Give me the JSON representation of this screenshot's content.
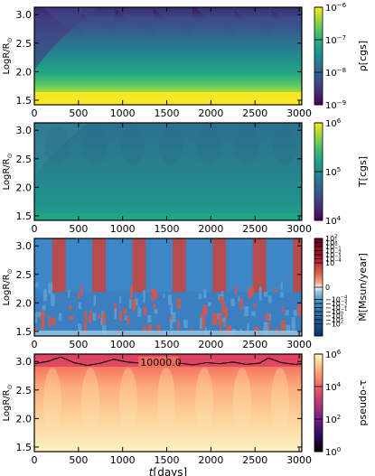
{
  "chart_data": [
    {
      "type": "heatmap",
      "panel": "density",
      "ylabel": "Log$R/R_\\odot$",
      "ylabel_text": "LogR/R",
      "ylabel_sub": "⊙",
      "x_ticks": [
        0,
        500,
        1000,
        1500,
        2000,
        2500,
        3000
      ],
      "y_ticks": [
        "1.5",
        "2.0",
        "2.5",
        "3.0"
      ],
      "xlim": [
        0,
        3030
      ],
      "ylim": [
        1.42,
        3.13
      ],
      "colormap": "viridis",
      "cbar_scale": "log",
      "cbar_label": "ρ[cgs]",
      "cbar_ticks": [
        {
          "mant": "10",
          "exp": "−6",
          "pos": 1.0
        },
        {
          "mant": "10",
          "exp": "−7",
          "pos": 0.667
        },
        {
          "mant": "10",
          "exp": "−8",
          "pos": 0.333
        },
        {
          "mant": "10",
          "exp": "−9",
          "pos": 0.0
        }
      ],
      "pulsation_times_days": [
        150,
        520,
        960,
        1400,
        1880,
        2300,
        2720
      ]
    },
    {
      "type": "heatmap",
      "panel": "temperature",
      "ylabel_text": "LogR/R",
      "ylabel_sub": "⊙",
      "x_ticks": [
        0,
        500,
        1000,
        1500,
        2000,
        2500,
        3000
      ],
      "y_ticks": [
        "1.5",
        "2.0",
        "2.5",
        "3.0"
      ],
      "xlim": [
        0,
        3030
      ],
      "ylim": [
        1.42,
        3.13
      ],
      "colormap": "viridis",
      "cbar_scale": "log",
      "cbar_label": "T[cgs]",
      "cbar_ticks": [
        {
          "mant": "10",
          "exp": "6",
          "pos": 1.0
        },
        {
          "mant": "10",
          "exp": "5",
          "pos": 0.5
        },
        {
          "mant": "10",
          "exp": "4",
          "pos": 0.0
        }
      ]
    },
    {
      "type": "heatmap",
      "panel": "mass-flux",
      "ylabel_text": "LogR/R",
      "ylabel_sub": "⊙",
      "x_ticks": [
        0,
        500,
        1000,
        1500,
        2000,
        2500,
        3000
      ],
      "y_ticks": [
        "1.5",
        "2.0",
        "2.5",
        "3.0"
      ],
      "xlim": [
        0,
        3030
      ],
      "ylim": [
        1.42,
        3.13
      ],
      "colormap": "RdBu (symlog)",
      "cbar_scale": "symlog",
      "cbar_label": "Ṁ[Msun/year]",
      "cbar_ticks": [
        {
          "mant": "10",
          "exp": "2",
          "pos": 1.0
        },
        {
          "mant": "10",
          "exp": "1",
          "pos": 0.9583
        },
        {
          "mant": "10",
          "exp": "0",
          "pos": 0.9167
        },
        {
          "mant": "10",
          "exp": "−1",
          "pos": 0.875
        },
        {
          "mant": "10",
          "exp": "−2",
          "pos": 0.8333
        },
        {
          "mant": "10",
          "exp": "−3",
          "pos": 0.7917
        },
        {
          "mant": "10",
          "exp": "−4",
          "pos": 0.75
        },
        {
          "mant": "0",
          "exp": "",
          "pos": 0.5
        },
        {
          "mant": "−10",
          "exp": "−4",
          "pos": 0.375
        },
        {
          "mant": "−10",
          "exp": "−3",
          "pos": 0.3333
        },
        {
          "mant": "−10",
          "exp": "−2",
          "pos": 0.2917
        },
        {
          "mant": "−10",
          "exp": "−1",
          "pos": 0.25
        },
        {
          "mant": "−10",
          "exp": "0",
          "pos": 0.2083
        },
        {
          "mant": "−10",
          "exp": "1",
          "pos": 0.1667
        },
        {
          "mant": "−10",
          "exp": "2",
          "pos": 0.125
        }
      ]
    },
    {
      "type": "heatmap",
      "panel": "optical-depth",
      "ylabel_text": "LogR/R",
      "ylabel_sub": "⊙",
      "xlabel_italic": "t",
      "xlabel_rest": "[days]",
      "x_ticks": [
        0,
        500,
        1000,
        1500,
        2000,
        2500,
        3000
      ],
      "y_ticks": [
        "1.5",
        "2.0",
        "2.5",
        "3.0"
      ],
      "xlim": [
        0,
        3030
      ],
      "ylim": [
        1.42,
        3.13
      ],
      "colormap": "magma",
      "cbar_scale": "log",
      "cbar_label": "pseudo-τ",
      "cbar_ticks": [
        {
          "mant": "10",
          "exp": "6",
          "pos": 1.0
        },
        {
          "mant": "10",
          "exp": "4",
          "pos": 0.667
        },
        {
          "mant": "10",
          "exp": "2",
          "pos": 0.333
        },
        {
          "mant": "10",
          "exp": "0",
          "pos": 0.0
        }
      ],
      "contour": {
        "label": "10000.0",
        "label_x_days": 1200,
        "points": [
          [
            0,
            2.96
          ],
          [
            150,
            3.0
          ],
          [
            300,
            3.08
          ],
          [
            450,
            2.98
          ],
          [
            600,
            2.93
          ],
          [
            750,
            2.97
          ],
          [
            900,
            3.04
          ],
          [
            1050,
            2.99
          ],
          [
            1200,
            2.97
          ],
          [
            1350,
            2.99
          ],
          [
            1500,
            2.94
          ],
          [
            1650,
            2.97
          ],
          [
            1800,
            2.94
          ],
          [
            1950,
            2.98
          ],
          [
            2100,
            2.96
          ],
          [
            2250,
            2.99
          ],
          [
            2400,
            2.95
          ],
          [
            2550,
            2.97
          ],
          [
            2650,
            3.06
          ],
          [
            2800,
            2.98
          ],
          [
            2950,
            2.95
          ],
          [
            3030,
            2.96
          ]
        ]
      }
    }
  ]
}
